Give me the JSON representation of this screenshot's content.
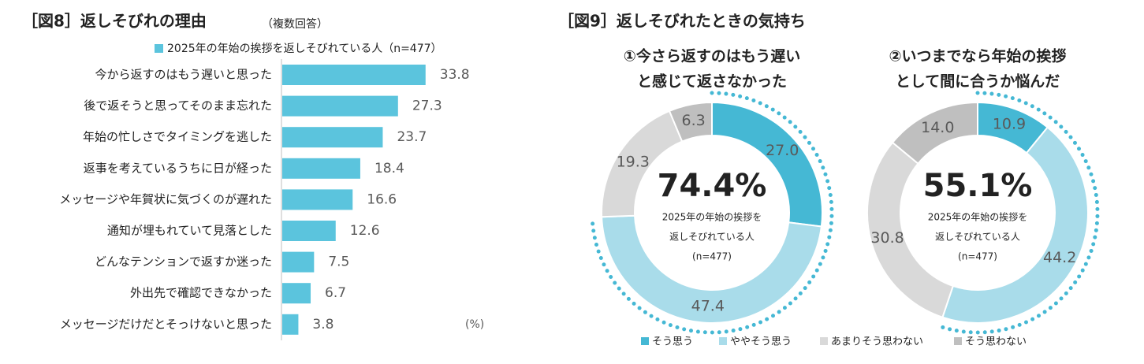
{
  "chart_data": [
    {
      "type": "bar",
      "orientation": "horizontal",
      "title": "［図8］返しそびれの理由",
      "subtitle": "（複数回答）",
      "categories": [
        "今から返すのはもう遅いと思った",
        "後で返そうと思ってそのまま忘れた",
        "年始の忙しさでタイミングを逃した",
        "返事を考えているうちに日が経った",
        "メッセージや年賀状に気づくのが遅れた",
        "通知が埋もれていて見落とした",
        "どんなテンションで返すか迷った",
        "外出先で確認できなかった",
        "メッセージだけだとそっけないと思った"
      ],
      "series": [
        {
          "name": "2025年の年始の挨拶を返しそびれている人（n=477）",
          "color": "#5bc4dd",
          "values": [
            33.8,
            27.3,
            23.7,
            18.4,
            16.6,
            12.6,
            7.5,
            6.7,
            3.8
          ]
        }
      ],
      "unit_label": "(%)",
      "xlim": [
        0,
        45
      ]
    },
    {
      "type": "donut",
      "title": [
        "①今さら返すのはもう遅い",
        "と感じて返さなかった"
      ],
      "values": [
        27.0,
        47.4,
        19.3,
        6.3
      ],
      "value_labels": [
        "27.0",
        "47.4",
        "19.3",
        "6.3"
      ],
      "center": {
        "value": {
          "value": 74.4,
          "label": "74.4%"
        },
        "lines": [
          "2025年の年始の挨拶を",
          "返しそびれている人",
          "(n=477)"
        ]
      }
    },
    {
      "type": "donut",
      "title": [
        "②いつまでなら年始の挨拶",
        "として間に合うか悩んだ"
      ],
      "values": [
        10.9,
        44.2,
        30.8,
        14.0
      ],
      "value_labels": [
        "10.9",
        "44.2",
        "30.8",
        "14.0"
      ],
      "center": {
        "value": {
          "value": 55.1,
          "label": "55.1%"
        },
        "lines": [
          "2025年の年始の挨拶を",
          "返しそびれている人",
          "(n=477)"
        ]
      }
    }
  ],
  "figure_9": {
    "title": "［図9］返しそびれたときの気持ち",
    "legend": [
      {
        "name": "そう思う",
        "color": "#45b8d4"
      },
      {
        "name": "ややそう思う",
        "color": "#a9dcea"
      },
      {
        "name": "あまりそう思わない",
        "color": "#d9d9d9"
      },
      {
        "name": "そう思わない",
        "color": "#bfbfbf"
      }
    ]
  }
}
